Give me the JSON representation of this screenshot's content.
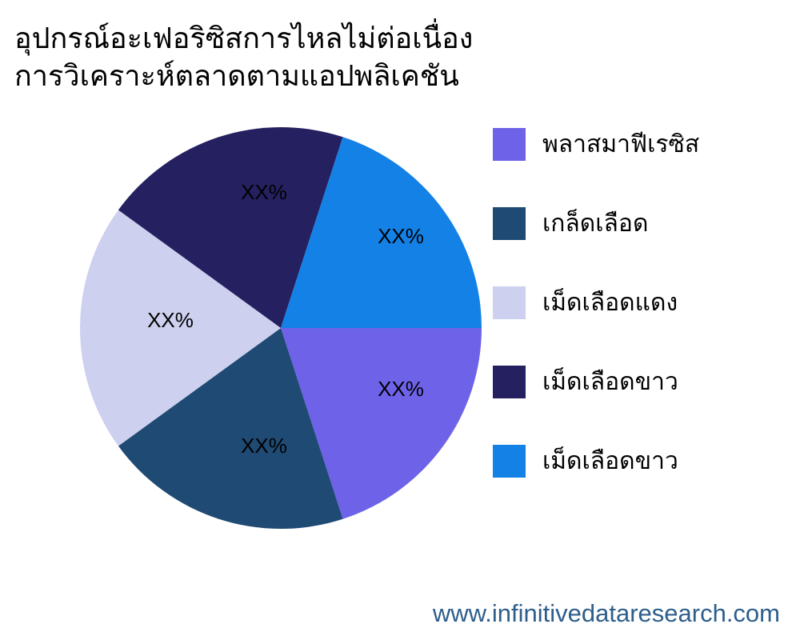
{
  "title": {
    "line1": "อุปกรณ์อะเฟอริซิสการไหลไม่ต่อเนื่อง",
    "line2": "การวิเคราะห์ตลาดตามแอปพลิเคชัน"
  },
  "footer": {
    "website_url": "www.infinitivedataresearch.com",
    "color": "#2E5E8C"
  },
  "chart_data": {
    "type": "pie",
    "title": "อุปกรณ์อะเฟอริซิสการไหลไม่ต่อเนื่อง การวิเคราะห์ตลาดตามแอปปพลิเคชัน",
    "legend_position": "right",
    "start_angle_deg": 0,
    "direction": "clockwise",
    "categories": [
      "พลาสมาฟีเรซิส",
      "เกล็ดเลือด",
      "เม็ดเลือดแดง",
      "เม็ดเลือดขาว",
      "เม็ดเลือดขาว"
    ],
    "values_percent": [
      20,
      20,
      20,
      20,
      20
    ],
    "value_labels": [
      "XX%",
      "XX%",
      "XX%",
      "XX%",
      "XX%"
    ],
    "slices": [
      {
        "label": "พลาสมาฟีเรซิส",
        "value": 20,
        "value_label": "XX%",
        "color": "#6E62E8"
      },
      {
        "label": "เกล็ดเลือด",
        "value": 20,
        "value_label": "XX%",
        "color": "#1F4A73"
      },
      {
        "label": "เม็ดเลือดแดง",
        "value": 20,
        "value_label": "XX%",
        "color": "#CDD0EE"
      },
      {
        "label": "เม็ดเลือดขาว",
        "value": 20,
        "value_label": "XX%",
        "color": "#252060"
      },
      {
        "label": "เม็ดเลือดขาว",
        "value": 20,
        "value_label": "XX%",
        "color": "#1381E6"
      }
    ]
  }
}
